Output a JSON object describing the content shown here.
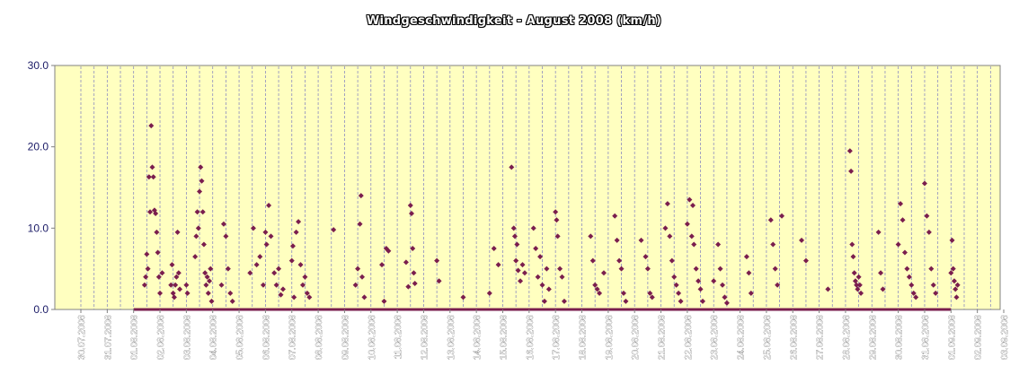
{
  "chart_data": {
    "type": "scatter",
    "title": "Windgeschwindigkeit - August 2008 (km/h)",
    "xlabel": "",
    "ylabel": "",
    "ylim": [
      0,
      30
    ],
    "yticks": [
      "0.0",
      "10.0",
      "20.0",
      "30.0"
    ],
    "xticks": [
      "30.07.2008",
      "31.07.2008",
      "01.08.2008",
      "02.08.2008",
      "03.08.2008",
      "04.08.2008",
      "05.08.2008",
      "06.08.2008",
      "07.08.2008",
      "08.08.2008",
      "09.08.2008",
      "10.08.2008",
      "11.08.2008",
      "12.08.2008",
      "13.08.2008",
      "14.08.2008",
      "15.08.2008",
      "16.08.2008",
      "17.08.2008",
      "18.08.2008",
      "19.08.2008",
      "20.08.2008",
      "21.08.2008",
      "22.08.2008",
      "23.08.2008",
      "24.08.2008",
      "25.08.2008",
      "26.08.2008",
      "27.08.2008",
      "28.08.2008",
      "29.08.2008",
      "30.08.2008",
      "31.08.2008",
      "01.09.2008",
      "02.09.2008",
      "03.09.2008"
    ],
    "xrange": [
      "30.07.2008",
      "03.09.2008"
    ],
    "grid": true,
    "legend": "none",
    "colors": {
      "plot_background": "#ffffc0",
      "marker": "#7a1e4e",
      "gridline": "#8c8cc0"
    },
    "baseline": {
      "from": "01.08.2008",
      "to": "31.08.2008",
      "value": 0
    },
    "points": [
      [
        "01.08.2008 10:00",
        3.0
      ],
      [
        "01.08.2008 11:00",
        4.0
      ],
      [
        "01.08.2008 12:00",
        6.8
      ],
      [
        "01.08.2008 13:00",
        5.0
      ],
      [
        "01.08.2008 14:00",
        16.3
      ],
      [
        "01.08.2008 15:00",
        12.0
      ],
      [
        "01.08.2008 16:00",
        22.6
      ],
      [
        "01.08.2008 17:00",
        17.5
      ],
      [
        "01.08.2008 18:00",
        16.3
      ],
      [
        "01.08.2008 19:00",
        12.2
      ],
      [
        "01.08.2008 20:00",
        11.8
      ],
      [
        "01.08.2008 21:00",
        9.5
      ],
      [
        "01.08.2008 22:00",
        7.0
      ],
      [
        "01.08.2008 23:00",
        4.0
      ],
      [
        "02.08.2008 00:00",
        2.0
      ],
      [
        "02.08.2008 02:00",
        4.5
      ],
      [
        "02.08.2008 10:00",
        3.0
      ],
      [
        "02.08.2008 11:00",
        5.5
      ],
      [
        "02.08.2008 12:00",
        2.0
      ],
      [
        "02.08.2008 13:00",
        1.5
      ],
      [
        "02.08.2008 14:00",
        3.0
      ],
      [
        "02.08.2008 15:00",
        4.0
      ],
      [
        "02.08.2008 16:00",
        9.5
      ],
      [
        "02.08.2008 17:00",
        4.5
      ],
      [
        "02.08.2008 18:00",
        2.5
      ],
      [
        "03.08.2008 00:00",
        3.0
      ],
      [
        "03.08.2008 01:00",
        2.0
      ],
      [
        "03.08.2008 08:00",
        6.5
      ],
      [
        "03.08.2008 09:00",
        9.0
      ],
      [
        "03.08.2008 10:00",
        12.0
      ],
      [
        "03.08.2008 11:00",
        10.0
      ],
      [
        "03.08.2008 12:00",
        14.5
      ],
      [
        "03.08.2008 13:00",
        17.5
      ],
      [
        "03.08.2008 14:00",
        15.8
      ],
      [
        "03.08.2008 15:00",
        12.0
      ],
      [
        "03.08.2008 16:00",
        8.0
      ],
      [
        "03.08.2008 17:00",
        4.5
      ],
      [
        "03.08.2008 18:00",
        3.0
      ],
      [
        "03.08.2008 19:00",
        4.0
      ],
      [
        "03.08.2008 20:00",
        2.0
      ],
      [
        "03.08.2008 21:00",
        3.5
      ],
      [
        "03.08.2008 22:00",
        5.0
      ],
      [
        "03.08.2008 23:00",
        1.0
      ],
      [
        "04.08.2008 08:00",
        3.0
      ],
      [
        "04.08.2008 10:00",
        10.5
      ],
      [
        "04.08.2008 12:00",
        9.0
      ],
      [
        "04.08.2008 14:00",
        5.0
      ],
      [
        "04.08.2008 16:00",
        2.0
      ],
      [
        "04.08.2008 18:00",
        1.0
      ],
      [
        "05.08.2008 10:00",
        4.5
      ],
      [
        "05.08.2008 13:00",
        10.0
      ],
      [
        "05.08.2008 16:00",
        5.5
      ],
      [
        "05.08.2008 19:00",
        6.5
      ],
      [
        "05.08.2008 22:00",
        3.0
      ],
      [
        "06.08.2008 00:00",
        9.5
      ],
      [
        "06.08.2008 01:00",
        8.0
      ],
      [
        "06.08.2008 03:00",
        12.8
      ],
      [
        "06.08.2008 05:00",
        9.0
      ],
      [
        "06.08.2008 08:00",
        4.5
      ],
      [
        "06.08.2008 10:00",
        3.0
      ],
      [
        "06.08.2008 12:00",
        5.0
      ],
      [
        "06.08.2008 14:00",
        1.8
      ],
      [
        "06.08.2008 16:00",
        2.5
      ],
      [
        "07.08.2008 00:00",
        6.0
      ],
      [
        "07.08.2008 01:00",
        7.8
      ],
      [
        "07.08.2008 02:00",
        1.5
      ],
      [
        "07.08.2008 04:00",
        9.5
      ],
      [
        "07.08.2008 06:00",
        10.8
      ],
      [
        "07.08.2008 08:00",
        5.5
      ],
      [
        "07.08.2008 10:00",
        3.0
      ],
      [
        "07.08.2008 12:00",
        4.0
      ],
      [
        "07.08.2008 14:00",
        2.0
      ],
      [
        "07.08.2008 16:00",
        1.5
      ],
      [
        "08.08.2008 14:00",
        9.8
      ],
      [
        "09.08.2008 10:00",
        3.0
      ],
      [
        "09.08.2008 12:00",
        5.0
      ],
      [
        "09.08.2008 14:00",
        10.5
      ],
      [
        "09.08.2008 15:00",
        14.0
      ],
      [
        "09.08.2008 16:00",
        4.0
      ],
      [
        "09.08.2008 18:00",
        1.5
      ],
      [
        "10.08.2008 10:00",
        5.5
      ],
      [
        "10.08.2008 12:00",
        1.0
      ],
      [
        "10.08.2008 14:00",
        7.5
      ],
      [
        "10.08.2008 16:00",
        7.2
      ],
      [
        "11.08.2008 08:00",
        5.8
      ],
      [
        "11.08.2008 10:00",
        2.8
      ],
      [
        "11.08.2008 12:00",
        12.8
      ],
      [
        "11.08.2008 13:00",
        11.8
      ],
      [
        "11.08.2008 14:00",
        7.5
      ],
      [
        "11.08.2008 15:00",
        4.5
      ],
      [
        "11.08.2008 16:00",
        3.2
      ],
      [
        "12.08.2008 12:00",
        6.0
      ],
      [
        "12.08.2008 14:00",
        3.5
      ],
      [
        "13.08.2008 12:00",
        1.5
      ],
      [
        "14.08.2008 12:00",
        2.0
      ],
      [
        "14.08.2008 16:00",
        7.5
      ],
      [
        "14.08.2008 20:00",
        5.5
      ],
      [
        "15.08.2008 08:00",
        17.5
      ],
      [
        "15.08.2008 10:00",
        10.0
      ],
      [
        "15.08.2008 11:00",
        9.0
      ],
      [
        "15.08.2008 12:00",
        6.0
      ],
      [
        "15.08.2008 13:00",
        8.0
      ],
      [
        "15.08.2008 14:00",
        4.8
      ],
      [
        "15.08.2008 16:00",
        3.5
      ],
      [
        "15.08.2008 18:00",
        5.5
      ],
      [
        "15.08.2008 20:00",
        4.5
      ],
      [
        "16.08.2008 04:00",
        10.0
      ],
      [
        "16.08.2008 06:00",
        7.5
      ],
      [
        "16.08.2008 08:00",
        4.0
      ],
      [
        "16.08.2008 10:00",
        6.5
      ],
      [
        "16.08.2008 12:00",
        3.0
      ],
      [
        "16.08.2008 14:00",
        1.0
      ],
      [
        "16.08.2008 16:00",
        5.0
      ],
      [
        "16.08.2008 18:00",
        2.5
      ],
      [
        "17.08.2008 00:00",
        12.0
      ],
      [
        "17.08.2008 01:00",
        11.0
      ],
      [
        "17.08.2008 02:00",
        9.0
      ],
      [
        "17.08.2008 04:00",
        5.0
      ],
      [
        "17.08.2008 06:00",
        4.0
      ],
      [
        "17.08.2008 08:00",
        1.0
      ],
      [
        "18.08.2008 08:00",
        9.0
      ],
      [
        "18.08.2008 10:00",
        6.0
      ],
      [
        "18.08.2008 12:00",
        3.0
      ],
      [
        "18.08.2008 14:00",
        2.5
      ],
      [
        "18.08.2008 16:00",
        2.0
      ],
      [
        "18.08.2008 20:00",
        4.5
      ],
      [
        "19.08.2008 06:00",
        11.5
      ],
      [
        "19.08.2008 08:00",
        8.5
      ],
      [
        "19.08.2008 10:00",
        6.0
      ],
      [
        "19.08.2008 12:00",
        5.0
      ],
      [
        "19.08.2008 14:00",
        2.0
      ],
      [
        "19.08.2008 16:00",
        1.0
      ],
      [
        "20.08.2008 06:00",
        8.5
      ],
      [
        "20.08.2008 10:00",
        6.5
      ],
      [
        "20.08.2008 12:00",
        5.0
      ],
      [
        "20.08.2008 14:00",
        2.0
      ],
      [
        "20.08.2008 16:00",
        1.5
      ],
      [
        "21.08.2008 04:00",
        10.0
      ],
      [
        "21.08.2008 06:00",
        13.0
      ],
      [
        "21.08.2008 08:00",
        9.0
      ],
      [
        "21.08.2008 10:00",
        6.0
      ],
      [
        "21.08.2008 12:00",
        4.0
      ],
      [
        "21.08.2008 14:00",
        3.0
      ],
      [
        "21.08.2008 16:00",
        2.0
      ],
      [
        "21.08.2008 18:00",
        1.0
      ],
      [
        "22.08.2008 00:00",
        10.5
      ],
      [
        "22.08.2008 02:00",
        13.5
      ],
      [
        "22.08.2008 04:00",
        9.0
      ],
      [
        "22.08.2008 05:00",
        12.8
      ],
      [
        "22.08.2008 06:00",
        8.0
      ],
      [
        "22.08.2008 08:00",
        5.0
      ],
      [
        "22.08.2008 10:00",
        3.5
      ],
      [
        "22.08.2008 12:00",
        2.5
      ],
      [
        "22.08.2008 14:00",
        1.0
      ],
      [
        "23.08.2008 00:00",
        3.5
      ],
      [
        "23.08.2008 04:00",
        8.0
      ],
      [
        "23.08.2008 06:00",
        5.0
      ],
      [
        "23.08.2008 08:00",
        3.0
      ],
      [
        "23.08.2008 10:00",
        1.5
      ],
      [
        "23.08.2008 12:00",
        0.8
      ],
      [
        "24.08.2008 06:00",
        6.5
      ],
      [
        "24.08.2008 08:00",
        4.5
      ],
      [
        "24.08.2008 10:00",
        2.0
      ],
      [
        "25.08.2008 04:00",
        11.0
      ],
      [
        "25.08.2008 06:00",
        8.0
      ],
      [
        "25.08.2008 08:00",
        5.0
      ],
      [
        "25.08.2008 10:00",
        3.0
      ],
      [
        "25.08.2008 14:00",
        11.5
      ],
      [
        "26.08.2008 08:00",
        8.5
      ],
      [
        "26.08.2008 12:00",
        6.0
      ],
      [
        "27.08.2008 08:00",
        2.5
      ],
      [
        "28.08.2008 04:00",
        19.5
      ],
      [
        "28.08.2008 05:00",
        17.0
      ],
      [
        "28.08.2008 06:00",
        8.0
      ],
      [
        "28.08.2008 07:00",
        6.5
      ],
      [
        "28.08.2008 08:00",
        4.5
      ],
      [
        "28.08.2008 09:00",
        3.5
      ],
      [
        "28.08.2008 10:00",
        3.0
      ],
      [
        "28.08.2008 11:00",
        2.5
      ],
      [
        "28.08.2008 12:00",
        4.0
      ],
      [
        "28.08.2008 13:00",
        3.0
      ],
      [
        "28.08.2008 14:00",
        2.0
      ],
      [
        "29.08.2008 06:00",
        9.5
      ],
      [
        "29.08.2008 08:00",
        4.5
      ],
      [
        "29.08.2008 10:00",
        2.5
      ],
      [
        "30.08.2008 00:00",
        8.0
      ],
      [
        "30.08.2008 02:00",
        13.0
      ],
      [
        "30.08.2008 04:00",
        11.0
      ],
      [
        "30.08.2008 06:00",
        7.0
      ],
      [
        "30.08.2008 08:00",
        5.0
      ],
      [
        "30.08.2008 10:00",
        4.0
      ],
      [
        "30.08.2008 12:00",
        3.0
      ],
      [
        "30.08.2008 14:00",
        2.0
      ],
      [
        "30.08.2008 16:00",
        1.5
      ],
      [
        "31.08.2008 00:00",
        15.5
      ],
      [
        "31.08.2008 02:00",
        11.5
      ],
      [
        "31.08.2008 04:00",
        9.5
      ],
      [
        "31.08.2008 06:00",
        5.0
      ],
      [
        "31.08.2008 08:00",
        3.0
      ],
      [
        "31.08.2008 10:00",
        2.0
      ],
      [
        "01.09.2008 00:00",
        4.5
      ],
      [
        "01.09.2008 01:00",
        8.5
      ],
      [
        "01.09.2008 02:00",
        5.0
      ],
      [
        "01.09.2008 03:00",
        3.5
      ],
      [
        "01.09.2008 04:00",
        2.5
      ],
      [
        "01.09.2008 05:00",
        1.5
      ],
      [
        "01.09.2008 06:00",
        3.0
      ]
    ]
  }
}
